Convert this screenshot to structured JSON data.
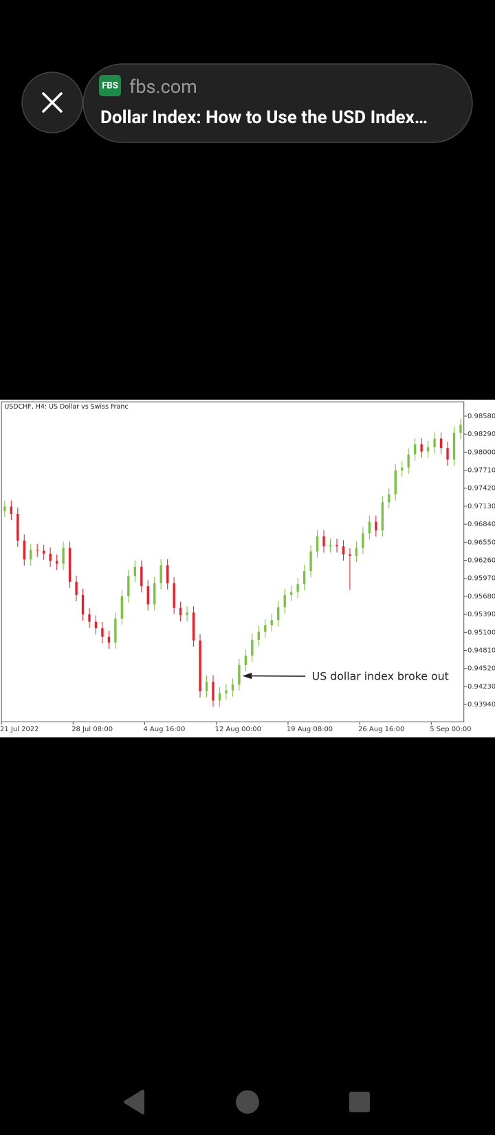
{
  "browser": {
    "logo": "FBS",
    "domain": "fbs.com",
    "title": "Dollar Index: How to Use the USD Index…"
  },
  "chart_data": {
    "type": "candlestick",
    "title": "USDCHF, H4:  US Dollar vs Swiss Franc",
    "annotation": "US dollar index broke out",
    "up_color": "#7cc242",
    "down_color": "#e8202a",
    "x": [
      2,
      6,
      10,
      14,
      18,
      22,
      26,
      30,
      34,
      38,
      42,
      46,
      50,
      54,
      58,
      62,
      66,
      70,
      74,
      78,
      82,
      86,
      90,
      94,
      98,
      102,
      106,
      110,
      114,
      118,
      122,
      126,
      130,
      134,
      138,
      142,
      146,
      150,
      154,
      158,
      162,
      166,
      170,
      174,
      178,
      182,
      186,
      190,
      194,
      198,
      202,
      206,
      210,
      214,
      218,
      222,
      226,
      230,
      234,
      238,
      242,
      246,
      250,
      254,
      258,
      262,
      266,
      270,
      274,
      278,
      282
    ],
    "open": [
      0.9705,
      0.97124,
      0.97008,
      0.96577,
      0.96274,
      0.96425,
      0.96414,
      0.96367,
      0.96251,
      0.96204,
      0.9646,
      0.95913,
      0.95703,
      0.95389,
      0.95272,
      0.95167,
      0.95028,
      0.94934,
      0.95319,
      0.9568,
      0.96006,
      0.96157,
      0.95843,
      0.95552,
      0.9589,
      0.96181,
      0.9589,
      0.95494,
      0.95377,
      0.9542,
      0.94969,
      0.94154,
      0.94306,
      0.94003,
      0.94119,
      0.94166,
      0.94259,
      0.94573,
      0.94725,
      0.94981,
      0.95109,
      0.95214,
      0.95296,
      0.95505,
      0.95703,
      0.9575,
      0.95878,
      0.96088,
      0.96402,
      0.96647,
      0.96484,
      0.96507,
      0.96484,
      0.96355,
      0.96332,
      0.9646,
      0.96693,
      0.9688,
      0.9674,
      0.97194,
      0.97322,
      0.97707,
      0.97753,
      0.97963,
      0.98126,
      0.98009,
      0.98079,
      0.98219,
      0.98068,
      0.97881,
      0.98312
    ],
    "high": [
      0.97224,
      0.97224,
      0.97108,
      0.96677,
      0.96525,
      0.96525,
      0.96514,
      0.96467,
      0.96351,
      0.9656,
      0.9656,
      0.96013,
      0.95803,
      0.95489,
      0.95372,
      0.95267,
      0.95128,
      0.95419,
      0.9578,
      0.96106,
      0.96257,
      0.96257,
      0.95943,
      0.9599,
      0.96281,
      0.96281,
      0.9599,
      0.95594,
      0.9552,
      0.9552,
      0.95069,
      0.94406,
      0.94406,
      0.94219,
      0.94266,
      0.94359,
      0.94673,
      0.94825,
      0.95081,
      0.95209,
      0.95314,
      0.95396,
      0.95605,
      0.95803,
      0.9585,
      0.95978,
      0.96188,
      0.96502,
      0.96747,
      0.96747,
      0.96607,
      0.96607,
      0.96584,
      0.96455,
      0.9656,
      0.96793,
      0.9698,
      0.9698,
      0.97294,
      0.97422,
      0.97807,
      0.97853,
      0.98063,
      0.98226,
      0.98226,
      0.98179,
      0.98319,
      0.98319,
      0.98168,
      0.98412,
      0.9854
    ],
    "low": [
      0.9695,
      0.96908,
      0.96477,
      0.96174,
      0.96174,
      0.96314,
      0.96267,
      0.96151,
      0.96104,
      0.96104,
      0.95813,
      0.95603,
      0.95289,
      0.95172,
      0.95067,
      0.94928,
      0.94834,
      0.94834,
      0.95219,
      0.9558,
      0.95906,
      0.95743,
      0.95452,
      0.95452,
      0.9579,
      0.9579,
      0.95394,
      0.95277,
      0.95277,
      0.94869,
      0.94054,
      0.94054,
      0.93903,
      0.93903,
      0.94019,
      0.94066,
      0.94159,
      0.94473,
      0.94625,
      0.94881,
      0.95009,
      0.95114,
      0.95196,
      0.95405,
      0.95603,
      0.9565,
      0.95778,
      0.95988,
      0.96302,
      0.96384,
      0.96384,
      0.96384,
      0.96255,
      0.95785,
      0.96232,
      0.9636,
      0.96593,
      0.9664,
      0.9664,
      0.97094,
      0.97222,
      0.97607,
      0.97653,
      0.97863,
      0.97909,
      0.97909,
      0.97979,
      0.97968,
      0.97781,
      0.97781,
      0.98212
    ],
    "close": [
      0.97124,
      0.97008,
      0.96577,
      0.96274,
      0.96425,
      0.96414,
      0.96367,
      0.96251,
      0.96204,
      0.9646,
      0.95913,
      0.95703,
      0.95389,
      0.95272,
      0.95167,
      0.95028,
      0.94934,
      0.95319,
      0.9568,
      0.96006,
      0.96157,
      0.95843,
      0.95552,
      0.9589,
      0.96181,
      0.9589,
      0.95494,
      0.95377,
      0.9542,
      0.94969,
      0.94154,
      0.94306,
      0.94003,
      0.94119,
      0.94166,
      0.94259,
      0.94573,
      0.94725,
      0.94981,
      0.95109,
      0.95214,
      0.95296,
      0.95505,
      0.95703,
      0.9575,
      0.95878,
      0.96088,
      0.96402,
      0.96647,
      0.96484,
      0.96507,
      0.96484,
      0.96355,
      0.96332,
      0.9646,
      0.96693,
      0.9688,
      0.9674,
      0.97194,
      0.97322,
      0.97707,
      0.97753,
      0.97963,
      0.98126,
      0.98009,
      0.98079,
      0.98219,
      0.98068,
      0.97881,
      0.98312,
      0.9844
    ],
    "xlim": [
      0,
      284
    ],
    "xticks": [
      {
        "value": 0,
        "label": "21 Jul 2022"
      },
      {
        "value": 44,
        "label": "28 Jul 08:00"
      },
      {
        "value": 88,
        "label": "4 Aug 16:00"
      },
      {
        "value": 132,
        "label": "12 Aug 00:00"
      },
      {
        "value": 176,
        "label": "19 Aug 08:00"
      },
      {
        "value": 220,
        "label": "26 Aug 16:00"
      },
      {
        "value": 264,
        "label": "5 Sep 00:00"
      }
    ],
    "ylim": [
      0.9366,
      0.9881
    ],
    "yticks": [
      {
        "value": 0.9858,
        "label": "0.98580"
      },
      {
        "value": 0.9829,
        "label": "0.98290"
      },
      {
        "value": 0.98,
        "label": "0.98000"
      },
      {
        "value": 0.9771,
        "label": "0.97710"
      },
      {
        "value": 0.9742,
        "label": "0.97420"
      },
      {
        "value": 0.9713,
        "label": "0.97130"
      },
      {
        "value": 0.9684,
        "label": "0.96840"
      },
      {
        "value": 0.9655,
        "label": "0.96550"
      },
      {
        "value": 0.9626,
        "label": "0.96260"
      },
      {
        "value": 0.9597,
        "label": "0.95970"
      },
      {
        "value": 0.9568,
        "label": "0.95680"
      },
      {
        "value": 0.9539,
        "label": "0.95390"
      },
      {
        "value": 0.951,
        "label": "0.95100"
      },
      {
        "value": 0.9481,
        "label": "0.94810"
      },
      {
        "value": 0.9452,
        "label": "0.94520"
      },
      {
        "value": 0.9423,
        "label": "0.94230"
      },
      {
        "value": 0.9394,
        "label": "0.93940"
      }
    ]
  }
}
